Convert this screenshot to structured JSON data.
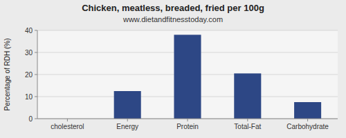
{
  "chart_data": {
    "type": "bar",
    "title": "Chicken, meatless, breaded, fried per 100g",
    "subtitle": "www.dietandfitnesstoday.com",
    "categories": [
      "cholesterol",
      "Energy",
      "Protein",
      "Total-Fat",
      "Carbohydrate"
    ],
    "values": [
      0,
      12.5,
      38,
      20.5,
      7.5
    ],
    "color": "#2d4785",
    "ylabel": "Percentage of RDH (%)",
    "ylim": [
      0,
      40
    ],
    "yticks": [
      0,
      10,
      20,
      30,
      40
    ],
    "grid": true
  }
}
